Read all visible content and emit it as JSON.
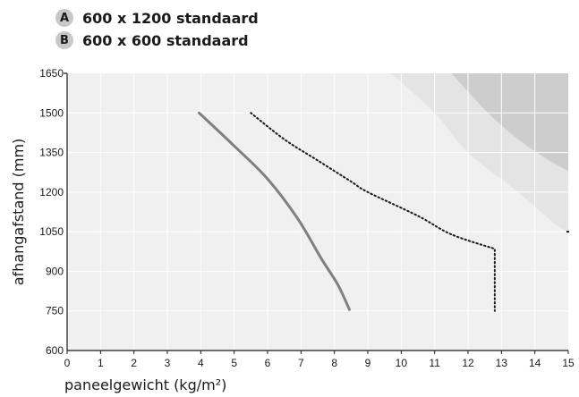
{
  "chart_data": {
    "type": "line",
    "xlabel": "paneelgewicht (kg/m²)",
    "ylabel": "afhangafstand (mm)",
    "xlim": [
      0,
      15
    ],
    "ylim": [
      600,
      1650
    ],
    "x_ticks": [
      "0",
      "1",
      "2",
      "3",
      "4",
      "5",
      "6",
      "7",
      "8",
      "9",
      "10",
      "11",
      "12",
      "13",
      "14",
      "15"
    ],
    "y_ticks": [
      "600",
      "750",
      "900",
      "1050",
      "1200",
      "1350",
      "1500",
      "1650"
    ],
    "grid": true,
    "legend": [
      {
        "badge": "A",
        "label": "600 x 1200 standaard"
      },
      {
        "badge": "B",
        "label": "600 x 600 standaard"
      }
    ],
    "regions": [
      {
        "color": "#e4e4e4",
        "boundary": [
          [
            9.7,
            1650
          ],
          [
            11.0,
            1500
          ],
          [
            12.0,
            1350
          ],
          [
            13.5,
            1200
          ],
          [
            14.6,
            1080
          ],
          [
            15,
            1050
          ]
        ]
      },
      {
        "color": "#cdcdcd",
        "boundary": [
          [
            11.5,
            1650
          ],
          [
            12.6,
            1500
          ],
          [
            13.5,
            1400
          ],
          [
            14.3,
            1330
          ],
          [
            15,
            1280
          ]
        ]
      }
    ],
    "series": [
      {
        "style": "solid",
        "color": "#808080",
        "points": [
          [
            3.95,
            1500
          ],
          [
            5.0,
            1375
          ],
          [
            6.0,
            1250
          ],
          [
            6.9,
            1100
          ],
          [
            7.6,
            950
          ],
          [
            8.1,
            850
          ],
          [
            8.45,
            755
          ]
        ]
      },
      {
        "style": "dotted",
        "color": "#1a1a1a",
        "points": [
          [
            5.5,
            1500
          ],
          [
            6.5,
            1400
          ],
          [
            7.5,
            1320
          ],
          [
            8.5,
            1240
          ],
          [
            9.0,
            1200
          ],
          [
            10.5,
            1110
          ],
          [
            11.5,
            1040
          ],
          [
            12.8,
            985
          ],
          [
            12.8,
            750
          ]
        ]
      }
    ],
    "right_marker": {
      "x": 15,
      "y": 1050
    }
  }
}
